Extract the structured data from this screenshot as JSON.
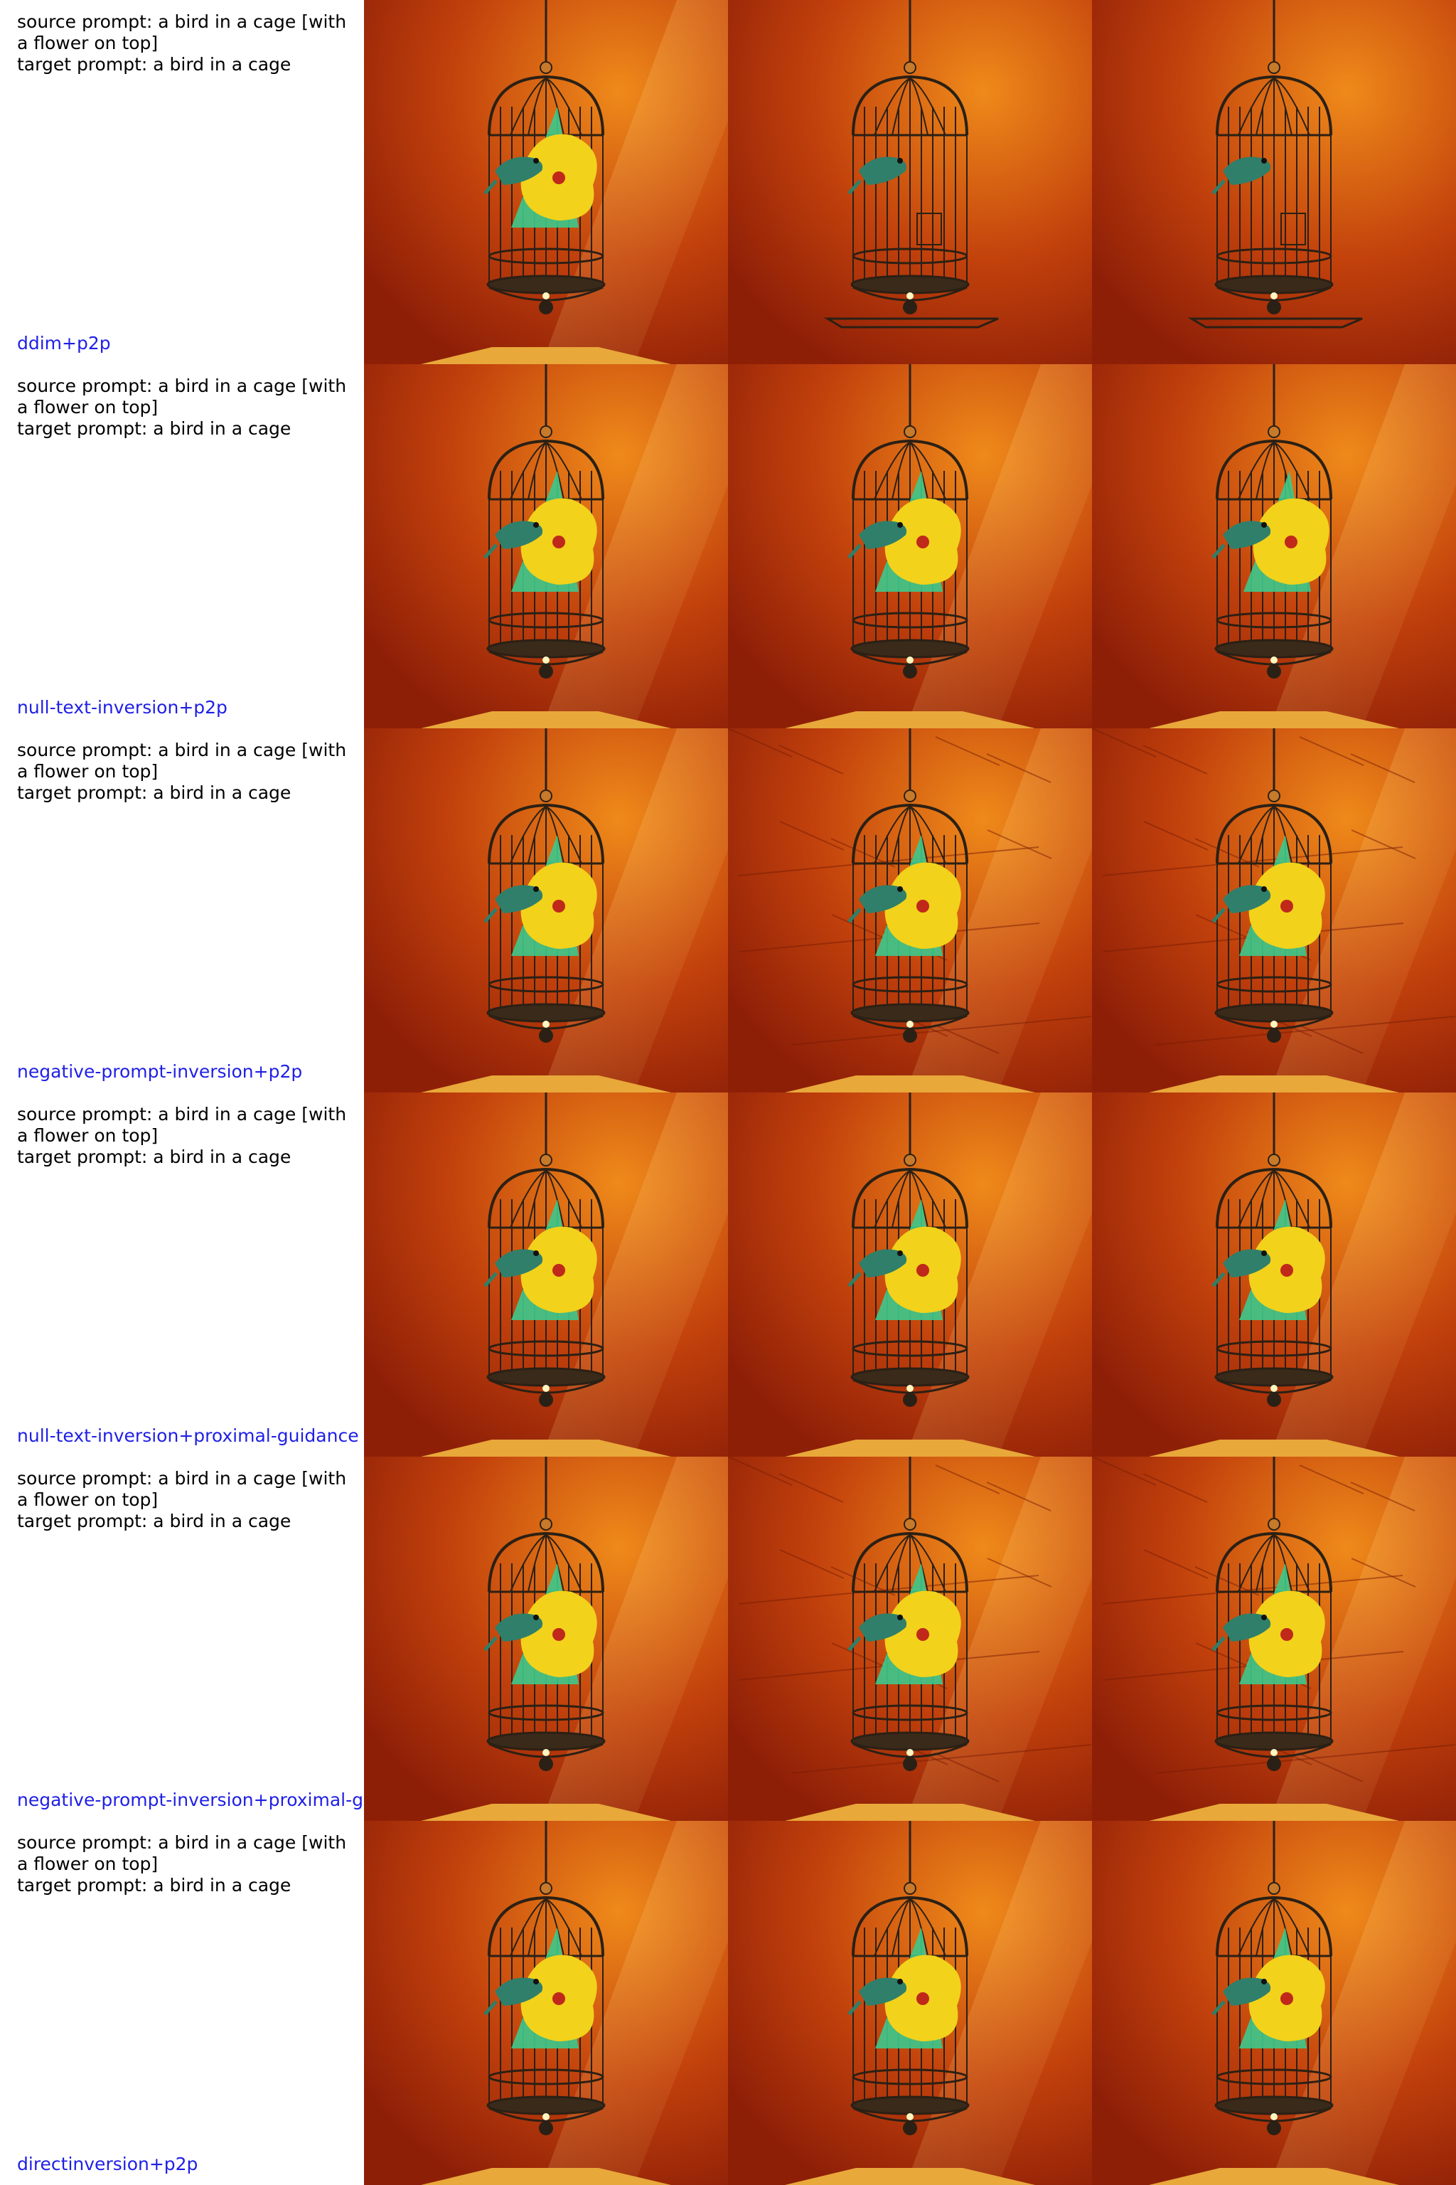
{
  "rows": [
    {
      "source_prompt": "source prompt: a bird in a cage [with a flower on top]",
      "target_prompt": "target prompt: a bird in a cage",
      "method": "ddim+p2p"
    },
    {
      "source_prompt": "source prompt: a bird in a cage [with a flower on top]",
      "target_prompt": "target prompt: a bird in a cage",
      "method": "null-text-inversion+p2p"
    },
    {
      "source_prompt": "source prompt: a bird in a cage [with a flower on top]",
      "target_prompt": "target prompt: a bird in a cage",
      "method": "negative-prompt-inversion+p2p"
    },
    {
      "source_prompt": "source prompt: a bird in a cage [with a flower on top]",
      "target_prompt": "target prompt: a bird in a cage",
      "method": "null-text-inversion+proximal-guidance"
    },
    {
      "source_prompt": "source prompt: a bird in a cage [with a flower on top]",
      "target_prompt": "target prompt: a bird in a cage",
      "method": "negative-prompt-inversion+proximal-g"
    },
    {
      "source_prompt": "source prompt: a bird in a cage [with a flower on top]",
      "target_prompt": "target prompt: a bird in a cage",
      "method": "directinversion+p2p"
    }
  ],
  "colors": {
    "label_text": "#000000",
    "method_text": "#1f1fe6",
    "wall_dark": "#8e1f07",
    "wall_mid": "#c2410c",
    "wall_light": "#ef8a1a",
    "flower": "#f2d21b",
    "leaf": "#3cc98c",
    "bird": "#2f7f6a",
    "cage": "#2b2015"
  }
}
